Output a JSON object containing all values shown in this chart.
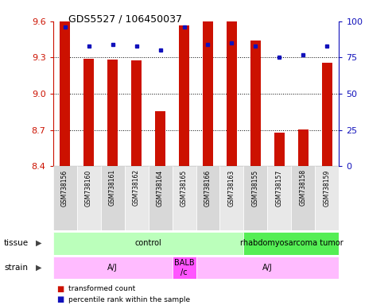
{
  "title": "GDS5527 / 106450037",
  "samples": [
    "GSM738156",
    "GSM738160",
    "GSM738161",
    "GSM738162",
    "GSM738164",
    "GSM738165",
    "GSM738166",
    "GSM738163",
    "GSM738155",
    "GSM738157",
    "GSM738158",
    "GSM738159"
  ],
  "bar_values": [
    9.6,
    9.29,
    9.285,
    9.275,
    8.855,
    9.565,
    9.6,
    9.6,
    9.44,
    8.68,
    8.705,
    9.26
  ],
  "dot_percentiles": [
    96,
    83,
    84,
    83,
    80,
    96,
    84,
    85,
    83,
    75,
    77,
    83
  ],
  "ylim_left": [
    8.4,
    9.6
  ],
  "ylim_right": [
    0,
    100
  ],
  "yticks_left": [
    8.4,
    8.7,
    9.0,
    9.3,
    9.6
  ],
  "yticks_right": [
    0,
    25,
    50,
    75,
    100
  ],
  "bar_color": "#cc1100",
  "dot_color": "#1111bb",
  "col_bg_even": "#d8d8d8",
  "col_bg_odd": "#e8e8e8",
  "tissue_groups": [
    {
      "label": "control",
      "start": 0,
      "end": 8,
      "color": "#bbffbb"
    },
    {
      "label": "rhabdomyosarcoma tumor",
      "start": 8,
      "end": 12,
      "color": "#55ee55"
    }
  ],
  "strain_groups": [
    {
      "label": "A/J",
      "start": 0,
      "end": 5,
      "color": "#ffbbff"
    },
    {
      "label": "BALB\n/c",
      "start": 5,
      "end": 6,
      "color": "#ff55ff"
    },
    {
      "label": "A/J",
      "start": 6,
      "end": 12,
      "color": "#ffbbff"
    }
  ],
  "legend_red_label": "transformed count",
  "legend_blue_label": "percentile rank within the sample",
  "grid_dotted_at": [
    8.7,
    9.0,
    9.3
  ]
}
